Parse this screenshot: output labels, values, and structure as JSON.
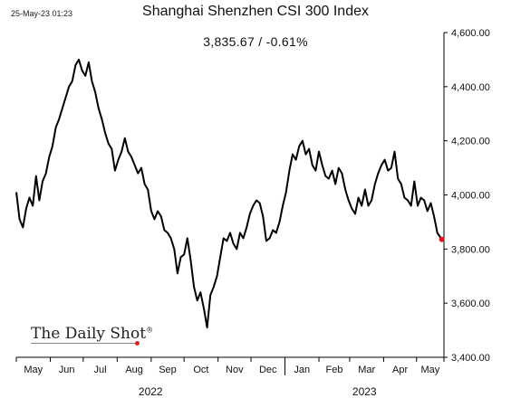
{
  "timestamp": "25-May-23 01:23",
  "logo": {
    "text": "The Daily Shot",
    "mark": "®"
  },
  "colors": {
    "line": "#000000",
    "last_point": "#e8101a",
    "grid": "#d0d0d0"
  },
  "chart_data": {
    "type": "line",
    "title": "Shanghai Shenzhen CSI 300 Index",
    "subtitle": "3,835.67  /  -0.61%",
    "xlabel": "",
    "ylabel": "",
    "ylim": [
      3400,
      4600
    ],
    "y_ticks": [
      "3,400.00",
      "3,600.00",
      "3,800.00",
      "4,000.00",
      "4,200.00",
      "4,400.00",
      "4,600.00"
    ],
    "y_tick_values": [
      3400,
      3600,
      3800,
      4000,
      4200,
      4400,
      4600
    ],
    "y_axis_side": "right",
    "grid": false,
    "x_months": [
      "May",
      "Jun",
      "Jul",
      "Aug",
      "Sep",
      "Oct",
      "Nov",
      "Dec",
      "Jan",
      "Feb",
      "Mar",
      "Apr",
      "May"
    ],
    "x_years": [
      "2022",
      "2023"
    ],
    "last_value": 3835.67,
    "x": [
      "2022-05-01",
      "2022-05-04",
      "2022-05-07",
      "2022-05-10",
      "2022-05-13",
      "2022-05-16",
      "2022-05-19",
      "2022-05-22",
      "2022-05-25",
      "2022-05-28",
      "2022-05-31",
      "2022-06-03",
      "2022-06-06",
      "2022-06-09",
      "2022-06-12",
      "2022-06-15",
      "2022-06-18",
      "2022-06-21",
      "2022-06-24",
      "2022-06-27",
      "2022-06-30",
      "2022-07-03",
      "2022-07-06",
      "2022-07-09",
      "2022-07-12",
      "2022-07-15",
      "2022-07-18",
      "2022-07-21",
      "2022-07-24",
      "2022-07-27",
      "2022-07-30",
      "2022-08-02",
      "2022-08-05",
      "2022-08-08",
      "2022-08-11",
      "2022-08-14",
      "2022-08-17",
      "2022-08-20",
      "2022-08-23",
      "2022-08-26",
      "2022-08-29",
      "2022-09-01",
      "2022-09-04",
      "2022-09-07",
      "2022-09-10",
      "2022-09-13",
      "2022-09-16",
      "2022-09-19",
      "2022-09-22",
      "2022-09-25",
      "2022-09-28",
      "2022-10-01",
      "2022-10-04",
      "2022-10-07",
      "2022-10-10",
      "2022-10-13",
      "2022-10-16",
      "2022-10-19",
      "2022-10-22",
      "2022-10-25",
      "2022-10-28",
      "2022-10-31",
      "2022-11-03",
      "2022-11-06",
      "2022-11-09",
      "2022-11-12",
      "2022-11-15",
      "2022-11-18",
      "2022-11-21",
      "2022-11-24",
      "2022-11-27",
      "2022-11-30",
      "2022-12-03",
      "2022-12-06",
      "2022-12-09",
      "2022-12-12",
      "2022-12-15",
      "2022-12-18",
      "2022-12-21",
      "2022-12-24",
      "2022-12-27",
      "2022-12-30",
      "2023-01-02",
      "2023-01-05",
      "2023-01-08",
      "2023-01-11",
      "2023-01-14",
      "2023-01-17",
      "2023-01-20",
      "2023-01-23",
      "2023-01-26",
      "2023-01-29",
      "2023-02-01",
      "2023-02-04",
      "2023-02-07",
      "2023-02-10",
      "2023-02-13",
      "2023-02-16",
      "2023-02-19",
      "2023-02-22",
      "2023-02-25",
      "2023-02-28",
      "2023-03-03",
      "2023-03-06",
      "2023-03-09",
      "2023-03-12",
      "2023-03-15",
      "2023-03-18",
      "2023-03-21",
      "2023-03-24",
      "2023-03-27",
      "2023-03-30",
      "2023-04-02",
      "2023-04-05",
      "2023-04-08",
      "2023-04-11",
      "2023-04-14",
      "2023-04-17",
      "2023-04-20",
      "2023-04-23",
      "2023-04-26",
      "2023-04-29",
      "2023-05-02",
      "2023-05-05",
      "2023-05-08",
      "2023-05-11",
      "2023-05-14",
      "2023-05-17",
      "2023-05-20",
      "2023-05-24"
    ],
    "series": [
      {
        "values": [
          4010,
          3910,
          3880,
          3950,
          3990,
          3960,
          4070,
          3980,
          4050,
          4080,
          4140,
          4180,
          4250,
          4280,
          4320,
          4360,
          4400,
          4420,
          4480,
          4500,
          4460,
          4440,
          4490,
          4420,
          4380,
          4320,
          4280,
          4230,
          4190,
          4170,
          4090,
          4130,
          4160,
          4210,
          4160,
          4140,
          4110,
          4080,
          4100,
          4040,
          4020,
          3940,
          3910,
          3940,
          3920,
          3870,
          3860,
          3840,
          3800,
          3710,
          3770,
          3780,
          3840,
          3760,
          3660,
          3610,
          3640,
          3580,
          3510,
          3630,
          3660,
          3700,
          3770,
          3840,
          3830,
          3860,
          3820,
          3800,
          3860,
          3840,
          3880,
          3930,
          3960,
          3980,
          3970,
          3920,
          3830,
          3840,
          3870,
          3860,
          3900,
          3960,
          4010,
          4090,
          4150,
          4130,
          4180,
          4200,
          4150,
          4170,
          4110,
          4090,
          4160,
          4110,
          4070,
          4060,
          4090,
          4040,
          4100,
          4080,
          4020,
          3980,
          3950,
          3930,
          3990,
          3960,
          4020,
          3960,
          3980,
          4040,
          4080,
          4110,
          4130,
          4090,
          4100,
          4160,
          4060,
          4040,
          3990,
          3980,
          3960,
          4050,
          3960,
          3990,
          3980,
          3940,
          3970,
          3920,
          3860,
          3835.67
        ]
      }
    ]
  }
}
